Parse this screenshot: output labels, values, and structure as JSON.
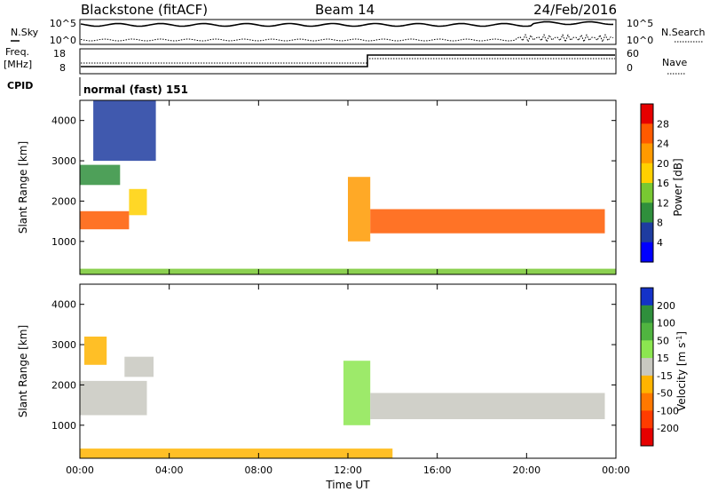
{
  "header": {
    "station": "Blackstone (fitACF)",
    "beam": "Beam 14",
    "date": "24/Feb/2016"
  },
  "top_panels": {
    "nsky_label": "N.Sky",
    "nsearch_label": "N.Search",
    "nsky_ticks": [
      "10^5",
      "10^0"
    ],
    "nsearch_ticks": [
      "10^5",
      "10^0"
    ],
    "freq_label_1": "Freq.",
    "freq_label_2": "[MHz]",
    "freq_ticks": [
      "18",
      "8"
    ],
    "nave_label": "Nave",
    "nave_ticks": [
      "60",
      "0"
    ],
    "cpid_label": "CPID",
    "cpid_value": "normal (fast) 151"
  },
  "chart_data": [
    {
      "type": "heatmap",
      "title": "",
      "xlabel": "",
      "ylabel": "Slant Range [km]",
      "x_ticks": [
        "00:00",
        "04:00",
        "08:00",
        "12:00",
        "16:00",
        "20:00",
        "00:00"
      ],
      "xlim_hours": [
        0,
        24
      ],
      "ylim": [
        180,
        4500
      ],
      "y_ticks": [
        1000,
        2000,
        3000,
        4000
      ],
      "colorbar_label": "Power [dB]",
      "colorbar_ticks": [
        "28",
        "24",
        "20",
        "16",
        "12",
        "8",
        "4"
      ],
      "colorbar_range": [
        0,
        30
      ],
      "colors_high_to_low": [
        "#e60000",
        "#ff5a00",
        "#ff9a00",
        "#ffd000",
        "#78c832",
        "#2f8f3c",
        "#1e3ca0",
        "#0000ff"
      ],
      "bands": [
        {
          "t_start": 0.0,
          "t_end": 2.2,
          "range_start": 1300,
          "range_end": 1750,
          "value": 24
        },
        {
          "t_start": 2.2,
          "t_end": 3.0,
          "range_start": 1650,
          "range_end": 2300,
          "value": 16
        },
        {
          "t_start": 0.0,
          "t_end": 1.8,
          "range_start": 2400,
          "range_end": 2900,
          "value": 10
        },
        {
          "t_start": 0.6,
          "t_end": 3.4,
          "range_start": 3000,
          "range_end": 4500,
          "value": 6
        },
        {
          "t_start": 12.0,
          "t_end": 13.0,
          "range_start": 1000,
          "range_end": 2600,
          "value": 20
        },
        {
          "t_start": 13.0,
          "t_end": 23.5,
          "range_start": 1200,
          "range_end": 1800,
          "value": 24
        },
        {
          "t_start": 0.0,
          "t_end": 24.0,
          "range_start": 180,
          "range_end": 320,
          "value": 14
        }
      ]
    },
    {
      "type": "heatmap",
      "title": "",
      "xlabel": "Time UT",
      "ylabel": "Slant Range [km]",
      "x_ticks": [
        "00:00",
        "04:00",
        "08:00",
        "12:00",
        "16:00",
        "20:00",
        "00:00"
      ],
      "xlim_hours": [
        0,
        24
      ],
      "ylim": [
        180,
        4500
      ],
      "y_ticks": [
        1000,
        2000,
        3000,
        4000
      ],
      "colorbar_label": "Velocity [m s",
      "colorbar_label_exp": "-1",
      "colorbar_label_end": "]",
      "colorbar_ticks": [
        "200",
        "100",
        "50",
        "15",
        "-15",
        "-50",
        "-100",
        "-200"
      ],
      "colorbar_range": [
        -250,
        250
      ],
      "colors_high_to_low": [
        "#1432c8",
        "#2f8f3c",
        "#50b440",
        "#8ce650",
        "#c8c8c0",
        "#ffb400",
        "#ff7800",
        "#ff3c00",
        "#e60000"
      ],
      "bands": [
        {
          "t_start": 0.0,
          "t_end": 3.0,
          "range_start": 1250,
          "range_end": 2100,
          "value": 0
        },
        {
          "t_start": 0.2,
          "t_end": 1.2,
          "range_start": 2500,
          "range_end": 3200,
          "value": -60
        },
        {
          "t_start": 2.0,
          "t_end": 3.3,
          "range_start": 2200,
          "range_end": 2700,
          "value": 0
        },
        {
          "t_start": 11.8,
          "t_end": 13.0,
          "range_start": 1000,
          "range_end": 2600,
          "value": 40
        },
        {
          "t_start": 13.0,
          "t_end": 23.5,
          "range_start": 1150,
          "range_end": 1800,
          "value": 0
        },
        {
          "t_start": 0.0,
          "t_end": 14.0,
          "range_start": 180,
          "range_end": 420,
          "value": -40
        }
      ]
    }
  ]
}
